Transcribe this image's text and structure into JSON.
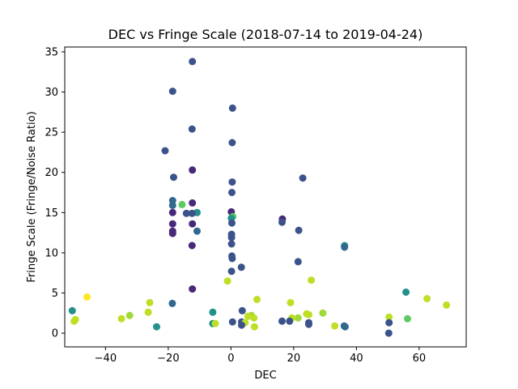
{
  "chart_data": {
    "type": "scatter",
    "title": "DEC vs Fringe Scale (2018-07-14 to 2019-04-24)",
    "xlabel": "DEC",
    "ylabel": "Fringe Scale (Fringe/Noise Ratio)",
    "xlim": [
      -53,
      75
    ],
    "ylim": [
      -1.7,
      35.6
    ],
    "xticks": [
      -40,
      -20,
      0,
      20,
      40,
      60
    ],
    "xtick_labels": [
      "−40",
      "−20",
      "0",
      "20",
      "40",
      "60"
    ],
    "yticks": [
      0,
      5,
      10,
      15,
      20,
      25,
      30,
      35
    ],
    "ytick_labels": [
      "0",
      "5",
      "10",
      "15",
      "20",
      "25",
      "30",
      "35"
    ],
    "grid": false,
    "legend": "none",
    "colormap": "viridis (color encodes a value not labeled on the chart)",
    "points": [
      {
        "x": -12.3,
        "y": 33.8,
        "color": "#3b528b"
      },
      {
        "x": -18.6,
        "y": 30.1,
        "color": "#3b528b"
      },
      {
        "x": 0.5,
        "y": 28.0,
        "color": "#3b528b"
      },
      {
        "x": -12.4,
        "y": 25.4,
        "color": "#3b528b"
      },
      {
        "x": 0.4,
        "y": 23.7,
        "color": "#3b528b"
      },
      {
        "x": -21.0,
        "y": 22.7,
        "color": "#3b528b"
      },
      {
        "x": -12.3,
        "y": 20.3,
        "color": "#482878"
      },
      {
        "x": -18.3,
        "y": 19.4,
        "color": "#3b528b"
      },
      {
        "x": 22.9,
        "y": 19.3,
        "color": "#3b528b"
      },
      {
        "x": 0.4,
        "y": 18.8,
        "color": "#3b528b"
      },
      {
        "x": 0.3,
        "y": 17.5,
        "color": "#3b528b"
      },
      {
        "x": -18.6,
        "y": 16.5,
        "color": "#31688e"
      },
      {
        "x": -12.3,
        "y": 16.2,
        "color": "#482878"
      },
      {
        "x": -15.6,
        "y": 16.0,
        "color": "#5ec962"
      },
      {
        "x": -18.6,
        "y": 15.9,
        "color": "#31688e"
      },
      {
        "x": 0.1,
        "y": 15.1,
        "color": "#482878"
      },
      {
        "x": -10.8,
        "y": 15.0,
        "color": "#21918c"
      },
      {
        "x": -18.6,
        "y": 15.0,
        "color": "#482878"
      },
      {
        "x": -12.4,
        "y": 14.9,
        "color": "#3b528b"
      },
      {
        "x": -14.2,
        "y": 14.9,
        "color": "#3b528b"
      },
      {
        "x": 0.6,
        "y": 14.5,
        "color": "#5ec962"
      },
      {
        "x": 0.1,
        "y": 14.3,
        "color": "#21918c"
      },
      {
        "x": 16.4,
        "y": 14.2,
        "color": "#482878"
      },
      {
        "x": 16.3,
        "y": 13.8,
        "color": "#3b528b"
      },
      {
        "x": 0.3,
        "y": 13.7,
        "color": "#3b528b"
      },
      {
        "x": -18.6,
        "y": 13.6,
        "color": "#482878"
      },
      {
        "x": -12.3,
        "y": 13.6,
        "color": "#482878"
      },
      {
        "x": 21.6,
        "y": 12.8,
        "color": "#3b528b"
      },
      {
        "x": -18.6,
        "y": 12.7,
        "color": "#482878"
      },
      {
        "x": -10.8,
        "y": 12.7,
        "color": "#31688e"
      },
      {
        "x": -18.6,
        "y": 12.4,
        "color": "#482878"
      },
      {
        "x": 0.2,
        "y": 12.3,
        "color": "#3b528b"
      },
      {
        "x": 0.2,
        "y": 11.9,
        "color": "#3b528b"
      },
      {
        "x": 0.2,
        "y": 11.1,
        "color": "#3b528b"
      },
      {
        "x": 36.2,
        "y": 10.9,
        "color": "#21918c"
      },
      {
        "x": -12.4,
        "y": 10.9,
        "color": "#482878"
      },
      {
        "x": 36.2,
        "y": 10.7,
        "color": "#31688e"
      },
      {
        "x": 0.3,
        "y": 9.6,
        "color": "#3b528b"
      },
      {
        "x": 0.4,
        "y": 9.3,
        "color": "#3b528b"
      },
      {
        "x": 21.4,
        "y": 8.9,
        "color": "#3b528b"
      },
      {
        "x": 3.3,
        "y": 8.2,
        "color": "#3b528b"
      },
      {
        "x": 0.2,
        "y": 7.7,
        "color": "#3b528b"
      },
      {
        "x": 25.6,
        "y": 6.6,
        "color": "#bddf26"
      },
      {
        "x": -1.1,
        "y": 6.5,
        "color": "#bddf26"
      },
      {
        "x": -12.3,
        "y": 5.5,
        "color": "#482878"
      },
      {
        "x": 55.8,
        "y": 5.1,
        "color": "#21918c"
      },
      {
        "x": -45.9,
        "y": 4.5,
        "color": "#fde725"
      },
      {
        "x": 62.5,
        "y": 4.3,
        "color": "#bddf26"
      },
      {
        "x": 8.3,
        "y": 4.2,
        "color": "#bddf26"
      },
      {
        "x": 19.0,
        "y": 3.8,
        "color": "#bddf26"
      },
      {
        "x": -25.9,
        "y": 3.8,
        "color": "#bddf26"
      },
      {
        "x": -18.7,
        "y": 3.7,
        "color": "#31688e"
      },
      {
        "x": 68.7,
        "y": 3.5,
        "color": "#bddf26"
      },
      {
        "x": 3.6,
        "y": 2.8,
        "color": "#3b528b"
      },
      {
        "x": -50.6,
        "y": 2.8,
        "color": "#21918c"
      },
      {
        "x": -26.4,
        "y": 2.6,
        "color": "#bddf26"
      },
      {
        "x": -5.8,
        "y": 2.6,
        "color": "#21918c"
      },
      {
        "x": 29.3,
        "y": 2.5,
        "color": "#a0da39"
      },
      {
        "x": 24.1,
        "y": 2.4,
        "color": "#bddf26"
      },
      {
        "x": 24.8,
        "y": 2.3,
        "color": "#bddf26"
      },
      {
        "x": -32.3,
        "y": 2.2,
        "color": "#a0da39"
      },
      {
        "x": 6.5,
        "y": 2.2,
        "color": "#a0da39"
      },
      {
        "x": 5.4,
        "y": 2.1,
        "color": "#bddf26"
      },
      {
        "x": 50.4,
        "y": 2.0,
        "color": "#bddf26"
      },
      {
        "x": 21.4,
        "y": 1.9,
        "color": "#a0da39"
      },
      {
        "x": 7.3,
        "y": 1.9,
        "color": "#bddf26"
      },
      {
        "x": 19.4,
        "y": 1.9,
        "color": "#bddf26"
      },
      {
        "x": 56.3,
        "y": 1.8,
        "color": "#5ec962"
      },
      {
        "x": -34.9,
        "y": 1.8,
        "color": "#bddf26"
      },
      {
        "x": -49.6,
        "y": 1.7,
        "color": "#bddf26"
      },
      {
        "x": -50.0,
        "y": 1.5,
        "color": "#bddf26"
      },
      {
        "x": 16.3,
        "y": 1.5,
        "color": "#3b528b"
      },
      {
        "x": 18.7,
        "y": 1.5,
        "color": "#3b528b"
      },
      {
        "x": 0.5,
        "y": 1.4,
        "color": "#3b528b"
      },
      {
        "x": 3.4,
        "y": 1.4,
        "color": "#3b528b"
      },
      {
        "x": 4.5,
        "y": 1.3,
        "color": "#bddf26"
      },
      {
        "x": 24.8,
        "y": 1.3,
        "color": "#3b528b"
      },
      {
        "x": 50.4,
        "y": 1.3,
        "color": "#3b528b"
      },
      {
        "x": -5.8,
        "y": 1.2,
        "color": "#21918c"
      },
      {
        "x": -5.0,
        "y": 1.2,
        "color": "#bddf26"
      },
      {
        "x": 24.8,
        "y": 1.1,
        "color": "#3b528b"
      },
      {
        "x": 3.4,
        "y": 1.0,
        "color": "#3b528b"
      },
      {
        "x": 33.1,
        "y": 0.9,
        "color": "#bddf26"
      },
      {
        "x": 36.1,
        "y": 0.9,
        "color": "#31688e"
      },
      {
        "x": -23.7,
        "y": 0.8,
        "color": "#21918c"
      },
      {
        "x": 7.5,
        "y": 0.8,
        "color": "#bddf26"
      },
      {
        "x": 36.4,
        "y": 0.8,
        "color": "#31688e"
      },
      {
        "x": 50.3,
        "y": 0.0,
        "color": "#3b528b"
      }
    ]
  }
}
